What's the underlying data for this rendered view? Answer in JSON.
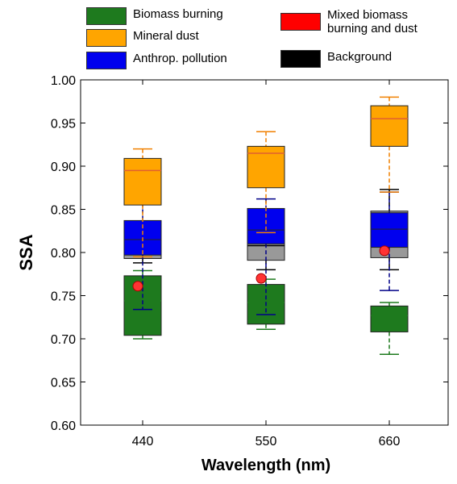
{
  "chart_data": {
    "type": "box",
    "ylabel": "SSA",
    "xlabel": "Wavelength (nm)",
    "categories": [
      "440",
      "550",
      "660"
    ],
    "ylim": [
      0.6,
      1.0
    ],
    "yticks": [
      "0.60",
      "0.65",
      "0.70",
      "0.75",
      "0.80",
      "0.85",
      "0.90",
      "0.95",
      "1.00"
    ],
    "legend": [
      {
        "label": "Biomass burning",
        "color": "#1e7a1e"
      },
      {
        "label": "Mineral dust",
        "color": "#ffa500"
      },
      {
        "label": "Anthrop. pollution",
        "color": "#0000ee"
      },
      {
        "label": "Mixed biomass\nburning and dust",
        "color": "#ff0000"
      },
      {
        "label": "Background",
        "color": "#000000"
      }
    ],
    "series": [
      {
        "name": "Biomass burning",
        "color": "#1e7a1e",
        "whisker_color": "#1e7a1e",
        "median_color": "#1e7a1e",
        "boxes": [
          {
            "low": 0.7,
            "q1": 0.704,
            "median": 0.744,
            "q3": 0.773,
            "high": 0.779
          },
          {
            "low": 0.711,
            "q1": 0.717,
            "median": 0.742,
            "q3": 0.763,
            "high": 0.769
          },
          {
            "low": 0.682,
            "q1": 0.708,
            "median": 0.727,
            "q3": 0.738,
            "high": 0.742
          }
        ]
      },
      {
        "name": "Background",
        "color": "#999999",
        "whisker_color": "#000000",
        "median_color": "#000000",
        "boxes": [
          {
            "low": 0.788,
            "q1": 0.793,
            "median": 0.798,
            "q3": 0.801,
            "high": 0.806
          },
          {
            "low": 0.78,
            "q1": 0.791,
            "median": 0.808,
            "q3": 0.82,
            "high": 0.84
          },
          {
            "low": 0.78,
            "q1": 0.794,
            "median": 0.816,
            "q3": 0.848,
            "high": 0.873
          }
        ]
      },
      {
        "name": "Anthrop. pollution",
        "color": "#0000ee",
        "whisker_color": "#000088",
        "median_color": "#1a1a60",
        "boxes": [
          {
            "low": 0.734,
            "q1": 0.797,
            "median": 0.815,
            "q3": 0.837,
            "high": 0.865
          },
          {
            "low": 0.728,
            "q1": 0.81,
            "median": 0.826,
            "q3": 0.851,
            "high": 0.862
          },
          {
            "low": 0.756,
            "q1": 0.806,
            "median": 0.827,
            "q3": 0.846,
            "high": 0.87
          }
        ]
      },
      {
        "name": "Mineral dust",
        "color": "#ffa500",
        "whisker_color": "#f08000",
        "median_color": "#e06030",
        "boxes": [
          {
            "low": 0.795,
            "q1": 0.855,
            "median": 0.895,
            "q3": 0.909,
            "high": 0.92
          },
          {
            "low": 0.823,
            "q1": 0.875,
            "median": 0.915,
            "q3": 0.923,
            "high": 0.94
          },
          {
            "low": 0.87,
            "q1": 0.923,
            "median": 0.955,
            "q3": 0.97,
            "high": 0.98
          }
        ]
      }
    ],
    "points": {
      "name": "Mixed biomass burning and dust",
      "color": "#ff3333",
      "values": [
        0.761,
        0.77,
        0.802
      ]
    }
  }
}
